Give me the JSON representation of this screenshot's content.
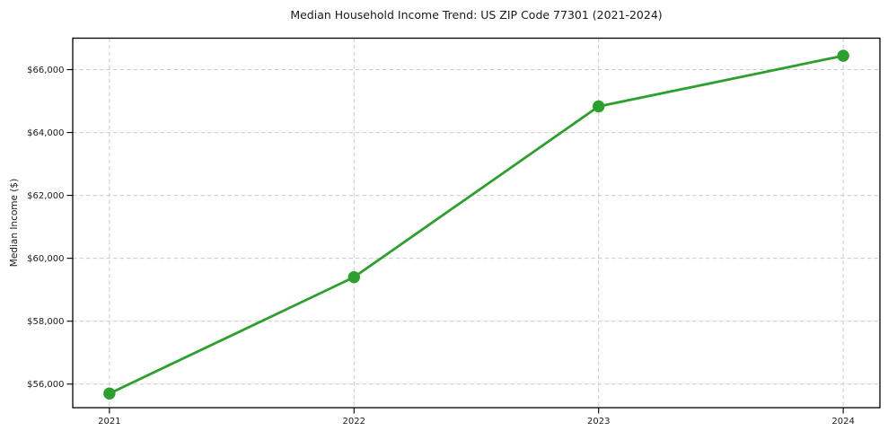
{
  "chart_data": {
    "type": "line",
    "title": "Median Household Income Trend: US ZIP Code 77301 (2021-2024)",
    "xlabel": "",
    "ylabel": "Median Income ($)",
    "x": [
      2021,
      2022,
      2023,
      2024
    ],
    "x_tick_labels": [
      "2021",
      "2022",
      "2023",
      "2024"
    ],
    "series": [
      {
        "name": "Median household income",
        "values": [
          55700,
          59400,
          64830,
          66440
        ]
      }
    ],
    "y_ticks": {
      "values": [
        56000,
        58000,
        60000,
        62000,
        64000,
        66000
      ],
      "labels": [
        "$56,000",
        "$58,000",
        "$60,000",
        "$62,000",
        "$64,000",
        "$66,000"
      ]
    },
    "xlim": [
      2020.85,
      2024.15
    ],
    "ylim": [
      55250,
      67000
    ],
    "grid": true,
    "grid_style": "dashed",
    "legend_position": "none",
    "colors": {
      "line": "#2ca02c",
      "marker": "#2ca02c",
      "grid": "#cccccc",
      "spine": "#000000",
      "text": "#1a1a1a",
      "background": "#ffffff"
    }
  }
}
